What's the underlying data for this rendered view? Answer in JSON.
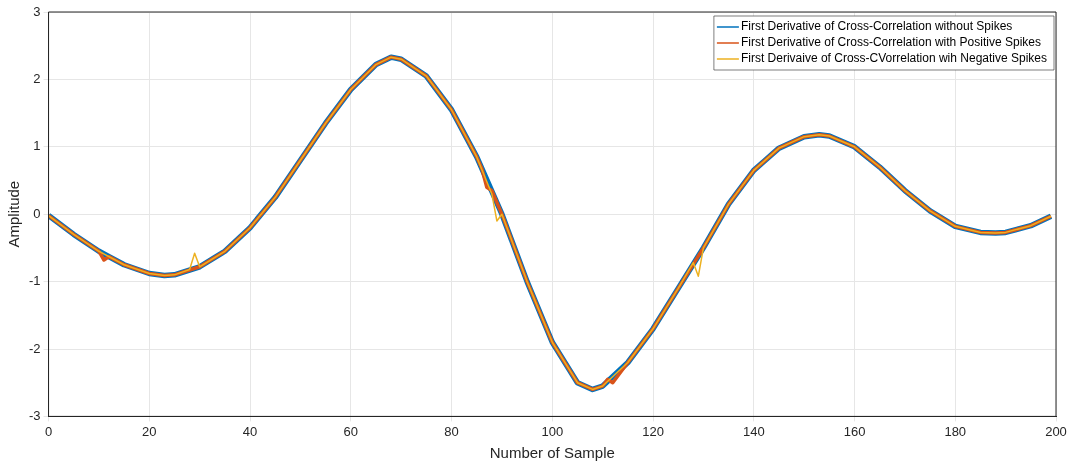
{
  "chart_data": {
    "type": "line",
    "xlabel": "Number of Sample",
    "ylabel": "Amplitude",
    "xlim": [
      0,
      200
    ],
    "xticks": [
      0,
      20,
      40,
      60,
      80,
      100,
      120,
      140,
      160,
      180,
      200
    ],
    "ylim": [
      -3,
      3
    ],
    "yticks": [
      -3,
      -2,
      -1,
      0,
      1,
      2,
      3
    ],
    "grid": true,
    "legend": "top right",
    "marker": "none",
    "line_style": "solid",
    "series": [
      {
        "name": "First Derivative of Cross-Correlation without Spikes",
        "color": "#0072bd",
        "x": [
          0,
          5,
          10,
          15,
          20,
          23,
          25,
          30,
          35,
          40,
          45,
          50,
          55,
          60,
          65,
          68,
          70,
          75,
          80,
          85,
          90,
          95,
          100,
          105,
          108,
          110,
          115,
          120,
          125,
          130,
          135,
          140,
          145,
          150,
          153,
          155,
          160,
          165,
          170,
          175,
          180,
          185,
          188,
          190,
          195,
          199
        ],
        "values": [
          -0.02,
          -0.3,
          -0.55,
          -0.75,
          -0.88,
          -0.91,
          -0.9,
          -0.78,
          -0.55,
          -0.2,
          0.25,
          0.8,
          1.35,
          1.85,
          2.22,
          2.33,
          2.3,
          2.05,
          1.55,
          0.85,
          0.0,
          -1.0,
          -1.9,
          -2.5,
          -2.6,
          -2.55,
          -2.2,
          -1.7,
          -1.1,
          -0.5,
          0.15,
          0.65,
          0.98,
          1.15,
          1.18,
          1.16,
          1.0,
          0.7,
          0.35,
          0.05,
          -0.18,
          -0.27,
          -0.28,
          -0.27,
          -0.17,
          -0.03
        ]
      },
      {
        "name": "First Derivative of Cross-Correlation with Positive Spikes",
        "color": "#d95319",
        "x": [
          0,
          5,
          10,
          11,
          12,
          15,
          20,
          23,
          25,
          30,
          35,
          40,
          45,
          50,
          55,
          60,
          65,
          68,
          70,
          75,
          80,
          85,
          86,
          87,
          88,
          90,
          95,
          100,
          105,
          108,
          110,
          111,
          112,
          115,
          120,
          125,
          130,
          135,
          140,
          145,
          150,
          153,
          155,
          160,
          165,
          170,
          175,
          180,
          185,
          188,
          190,
          195,
          199
        ],
        "values": [
          -0.02,
          -0.3,
          -0.55,
          -0.68,
          -0.63,
          -0.75,
          -0.88,
          -0.91,
          -0.9,
          -0.78,
          -0.55,
          -0.2,
          0.25,
          0.8,
          1.35,
          1.85,
          2.22,
          2.33,
          2.3,
          2.05,
          1.55,
          0.85,
          0.68,
          0.4,
          0.35,
          0.0,
          -1.0,
          -1.9,
          -2.5,
          -2.6,
          -2.55,
          -2.45,
          -2.5,
          -2.2,
          -1.7,
          -1.1,
          -0.5,
          0.15,
          0.65,
          0.98,
          1.15,
          1.18,
          1.16,
          1.0,
          0.7,
          0.35,
          0.05,
          -0.18,
          -0.27,
          -0.28,
          -0.27,
          -0.17,
          -0.03
        ]
      },
      {
        "name": "First Derivaive of Cross-CVorrelation wih Negative Spikes",
        "color": "#edb120",
        "x": [
          0,
          5,
          10,
          15,
          20,
          23,
          25,
          28,
          29,
          30,
          35,
          40,
          45,
          50,
          55,
          60,
          65,
          68,
          70,
          75,
          80,
          85,
          88,
          89,
          90,
          95,
          100,
          105,
          108,
          110,
          115,
          120,
          125,
          128,
          129,
          130,
          135,
          140,
          145,
          150,
          153,
          155,
          160,
          165,
          170,
          175,
          180,
          185,
          188,
          190,
          195,
          199
        ],
        "values": [
          -0.02,
          -0.3,
          -0.55,
          -0.75,
          -0.88,
          -0.91,
          -0.9,
          -0.82,
          -0.58,
          -0.78,
          -0.55,
          -0.2,
          0.25,
          0.8,
          1.35,
          1.85,
          2.22,
          2.33,
          2.3,
          2.05,
          1.55,
          0.85,
          0.3,
          -0.1,
          0.0,
          -1.0,
          -1.9,
          -2.5,
          -2.6,
          -2.55,
          -2.2,
          -1.7,
          -1.1,
          -0.72,
          -0.92,
          -0.5,
          0.15,
          0.65,
          0.98,
          1.15,
          1.18,
          1.16,
          1.0,
          0.7,
          0.35,
          0.05,
          -0.18,
          -0.27,
          -0.28,
          -0.27,
          -0.17,
          -0.03
        ]
      }
    ]
  }
}
